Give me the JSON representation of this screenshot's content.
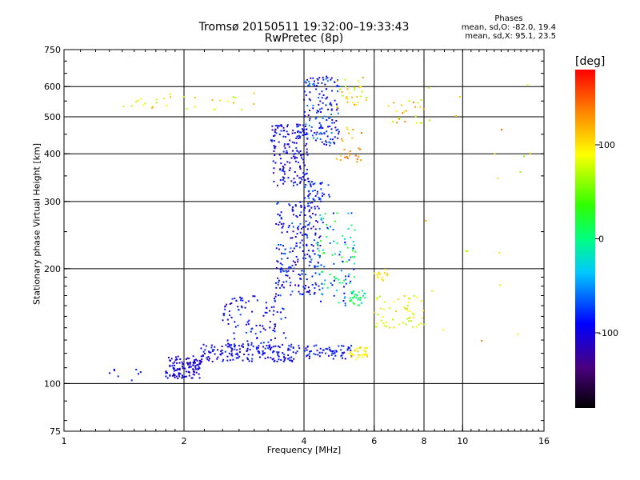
{
  "chart_data": {
    "type": "scatter",
    "title": "Tromsø 20150511 19:32:00–19:33:43",
    "subtitle": "RwPretec (8p)",
    "xlabel": "Frequency [MHz]",
    "ylabel": "Stationary phase Virtual Height [km]",
    "x_scale": "log2",
    "y_scale": "log",
    "xlim": [
      1,
      16
    ],
    "ylim": [
      75,
      750
    ],
    "x_ticks": [
      "1",
      "2",
      "4",
      "6",
      "8",
      "10",
      "16"
    ],
    "x_tick_values": [
      1,
      2,
      4,
      6,
      8,
      10,
      16
    ],
    "y_ticks": [
      "75",
      "100",
      "200",
      "300",
      "400",
      "500",
      "600",
      "750"
    ],
    "y_tick_values": [
      75,
      100,
      200,
      300,
      400,
      500,
      600,
      750
    ],
    "grid": true,
    "legend": {
      "heading": "Phases",
      "line1": "mean, sd,O: -82.0, 19.4",
      "line2": "mean, sd,X:  95.1, 23.5"
    },
    "colorbar": {
      "unit": "[deg]",
      "range": [
        -180,
        180
      ],
      "ticks": [
        "100",
        "0",
        "-100"
      ],
      "tick_values": [
        100,
        0,
        -100
      ]
    },
    "clusters": [
      {
        "f": [
          1.8,
          2.2
        ],
        "h": [
          103,
          118
        ],
        "phase": [
          -125,
          -85
        ],
        "count": 120
      },
      {
        "f": [
          2.2,
          3.9
        ],
        "h": [
          114,
          127
        ],
        "phase": [
          -115,
          -75
        ],
        "count": 160
      },
      {
        "f": [
          4.0,
          5.3
        ],
        "h": [
          116,
          126
        ],
        "phase": [
          -110,
          -70
        ],
        "count": 60
      },
      {
        "f": [
          5.2,
          5.8
        ],
        "h": [
          115,
          125
        ],
        "phase": [
          85,
          110
        ],
        "count": 35
      },
      {
        "f": [
          2.5,
          3.6
        ],
        "h": [
          125,
          170
        ],
        "phase": [
          -120,
          -70
        ],
        "count": 110
      },
      {
        "f": [
          3.4,
          4.4
        ],
        "h": [
          170,
          300
        ],
        "phase": [
          -125,
          -60
        ],
        "count": 230
      },
      {
        "f": [
          3.3,
          4.1
        ],
        "h": [
          330,
          480
        ],
        "phase": [
          -125,
          -75
        ],
        "count": 170
      },
      {
        "f": [
          4.0,
          4.9
        ],
        "h": [
          420,
          640
        ],
        "phase": [
          -120,
          -50
        ],
        "count": 150
      },
      {
        "f": [
          4.0,
          4.7
        ],
        "h": [
          300,
          340
        ],
        "phase": [
          -110,
          -60
        ],
        "count": 40
      },
      {
        "f": [
          4.3,
          5.4
        ],
        "h": [
          160,
          280
        ],
        "phase": [
          -100,
          30
        ],
        "count": 110
      },
      {
        "f": [
          5.2,
          5.7
        ],
        "h": [
          160,
          175
        ],
        "phase": [
          -30,
          40
        ],
        "count": 30
      },
      {
        "f": [
          4.8,
          5.6
        ],
        "h": [
          380,
          470
        ],
        "phase": [
          100,
          150
        ],
        "count": 25
      },
      {
        "f": [
          4.8,
          5.8
        ],
        "h": [
          520,
          640
        ],
        "phase": [
          60,
          130
        ],
        "count": 30
      },
      {
        "f": [
          6.0,
          8.0
        ],
        "h": [
          140,
          170
        ],
        "phase": [
          60,
          110
        ],
        "count": 55
      },
      {
        "f": [
          6.0,
          6.5
        ],
        "h": [
          185,
          200
        ],
        "phase": [
          90,
          110
        ],
        "count": 15
      },
      {
        "f": [
          6.5,
          8.0
        ],
        "h": [
          480,
          560
        ],
        "phase": [
          60,
          140
        ],
        "count": 25
      },
      {
        "f": [
          1.4,
          3.0
        ],
        "h": [
          520,
          580
        ],
        "phase": [
          60,
          120
        ],
        "count": 30
      },
      {
        "f": [
          1.3,
          1.6
        ],
        "h": [
          100,
          110
        ],
        "phase": [
          -100,
          -80
        ],
        "count": 8
      },
      {
        "f": [
          8.0,
          15.0
        ],
        "h": [
          120,
          620
        ],
        "phase": [
          60,
          150
        ],
        "count": 20
      }
    ]
  }
}
